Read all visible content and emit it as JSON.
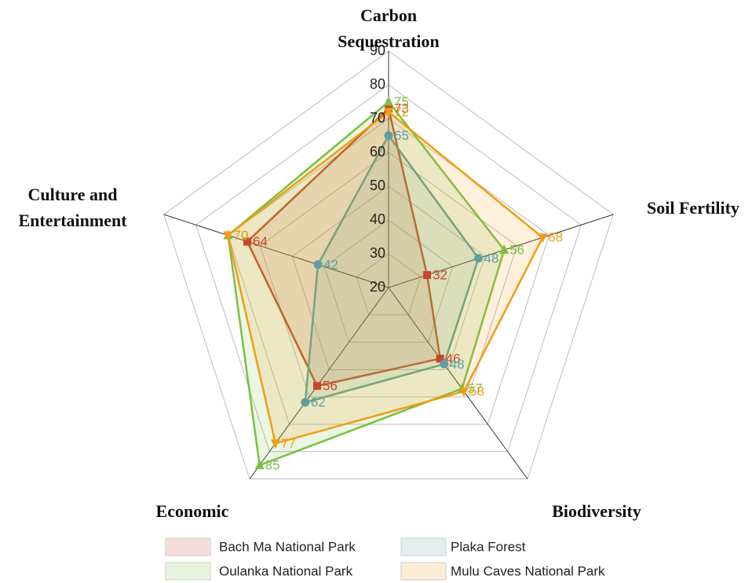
{
  "chart_data": {
    "type": "radar",
    "categories": [
      "Carbon Sequestration",
      "Soil Fertility",
      "Biodiversity",
      "Economic",
      "Culture and Entertainment"
    ],
    "rlim": [
      20,
      90
    ],
    "rticks": [
      20,
      30,
      40,
      50,
      60,
      70,
      80,
      90
    ],
    "grid": true,
    "legend": "bottom",
    "series": [
      {
        "name": "Bach Ma National Park",
        "color": "#c8472b",
        "marker": "square",
        "values": [
          73,
          32,
          46,
          56,
          64
        ]
      },
      {
        "name": "Plaka Forest",
        "color": "#5f9ea0",
        "marker": "circle",
        "values": [
          65,
          48,
          48,
          62,
          42
        ]
      },
      {
        "name": "Oulanka National Park",
        "color": "#7ac143",
        "marker": "triangle-up",
        "values": [
          75,
          56,
          57,
          85,
          70
        ]
      },
      {
        "name": "Mulu Caves National Park",
        "color": "#f39c12",
        "marker": "triangle-down",
        "values": [
          72,
          68,
          58,
          77,
          70
        ]
      }
    ]
  }
}
